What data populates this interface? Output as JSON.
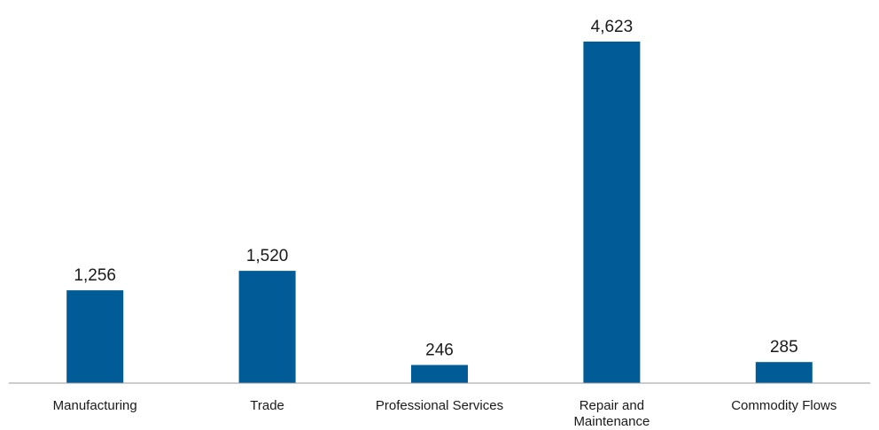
{
  "chart_data": {
    "type": "bar",
    "categories": [
      [
        "Manufacturing"
      ],
      [
        "Trade"
      ],
      [
        "Professional Services"
      ],
      [
        "Repair and",
        "Maintenance"
      ],
      [
        "Commodity Flows"
      ]
    ],
    "values": [
      1256,
      1520,
      246,
      4623,
      285
    ],
    "value_labels": [
      "1,256",
      "1,520",
      "246",
      "4,623",
      "285"
    ],
    "title": "",
    "xlabel": "",
    "ylabel": "",
    "ylim": [
      0,
      5000
    ],
    "grid": false,
    "legend": "none",
    "bar_color": "#005B96"
  }
}
